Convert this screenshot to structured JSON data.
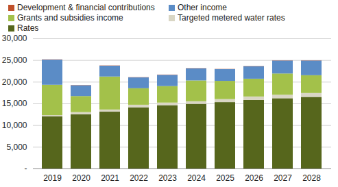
{
  "chart_data": {
    "type": "bar",
    "stacked": true,
    "grid": true,
    "legend": "top",
    "categories": [
      "2019",
      "2020",
      "2021",
      "2022",
      "2023",
      "2024",
      "2025",
      "2026",
      "2027",
      "2028"
    ],
    "ylim": [
      0,
      30000
    ],
    "yticks": [
      {
        "value": 0,
        "label": "-"
      },
      {
        "value": 5000,
        "label": "5,000"
      },
      {
        "value": 10000,
        "label": "10,000"
      },
      {
        "value": 15000,
        "label": "15,000"
      },
      {
        "value": 20000,
        "label": "20,000"
      },
      {
        "value": 25000,
        "label": "25,000"
      },
      {
        "value": 30000,
        "label": "30,000"
      }
    ],
    "series": [
      {
        "name": "Rates",
        "color": "#56661c",
        "values": [
          12000,
          12500,
          13100,
          14100,
          14600,
          14900,
          15300,
          15800,
          16200,
          16500
        ]
      },
      {
        "name": "Targeted metered water rates",
        "color": "#d9d6c4",
        "values": [
          300,
          500,
          500,
          600,
          600,
          600,
          700,
          800,
          800,
          900
        ]
      },
      {
        "name": "Grants and subsidies income",
        "color": "#a3c14a",
        "values": [
          7000,
          3700,
          7600,
          3800,
          3800,
          4800,
          4200,
          4100,
          4900,
          4100
        ]
      },
      {
        "name": "Other income",
        "color": "#5b8cc6",
        "values": [
          5800,
          2500,
          2500,
          2500,
          2600,
          2800,
          2700,
          2900,
          3000,
          3400
        ]
      },
      {
        "name": "Development & financial contributions",
        "color": "#c0502a",
        "values": [
          50,
          50,
          50,
          50,
          50,
          50,
          50,
          50,
          50,
          50
        ]
      }
    ]
  }
}
